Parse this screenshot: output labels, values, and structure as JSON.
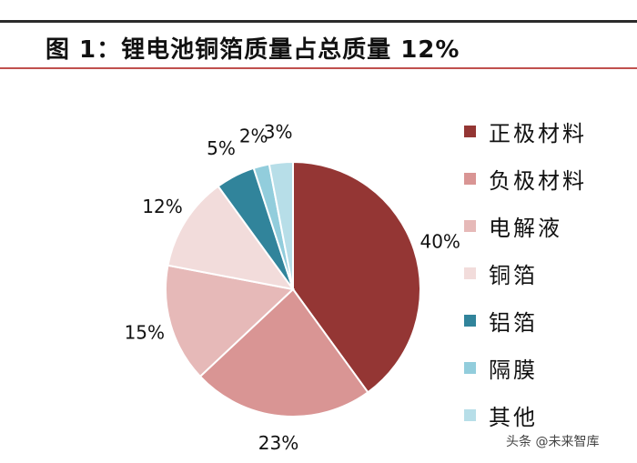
{
  "title": "图 1：锂电池铜箔质量占总质量 12%",
  "watermark": "头条 @未来智库",
  "chart_data": {
    "type": "pie",
    "title": "图 1：锂电池铜箔质量占总质量 12%",
    "legend_position": "right",
    "slices": [
      {
        "label": "正极材料",
        "value": 40,
        "display": "40%",
        "color": "#943634"
      },
      {
        "label": "负极材料",
        "value": 23,
        "display": "23%",
        "color": "#d99594"
      },
      {
        "label": "电解液",
        "value": 15,
        "display": "15%",
        "color": "#e6b9b8"
      },
      {
        "label": "铜箔",
        "value": 12,
        "display": "12%",
        "color": "#f2dcdb"
      },
      {
        "label": "铝箔",
        "value": 5,
        "display": "5%",
        "color": "#31849b"
      },
      {
        "label": "隔膜",
        "value": 2,
        "display": "2%",
        "color": "#92cddc"
      },
      {
        "label": "其他",
        "value": 3,
        "display": "3%",
        "color": "#b7dee8"
      }
    ]
  }
}
